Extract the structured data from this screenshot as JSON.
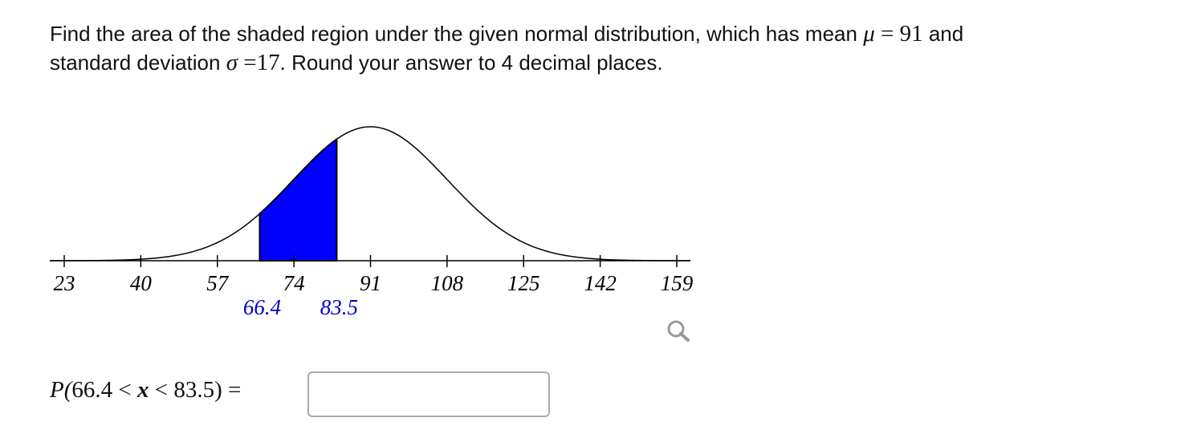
{
  "question": {
    "intro": "Find the area of the shaded region under the given normal distribution, which has mean",
    "mean_symbol": "μ",
    "equals": "=",
    "mean": 91,
    "and": "and",
    "sd_text": "standard deviation",
    "sd_symbol": "σ",
    "sd": 17,
    "outro": ". Round your answer to 4 decimal places."
  },
  "graph": {
    "xticks": [
      23,
      40,
      57,
      74,
      91,
      108,
      125,
      142,
      159
    ],
    "shade": [
      66.4,
      83.5
    ],
    "shade_color": "#0000ff",
    "shade_label_color": "#0000cc"
  },
  "answer": {
    "prefix": "P(",
    "lt": "<",
    "variable": "x",
    "suffix": ")",
    "equals": "="
  }
}
